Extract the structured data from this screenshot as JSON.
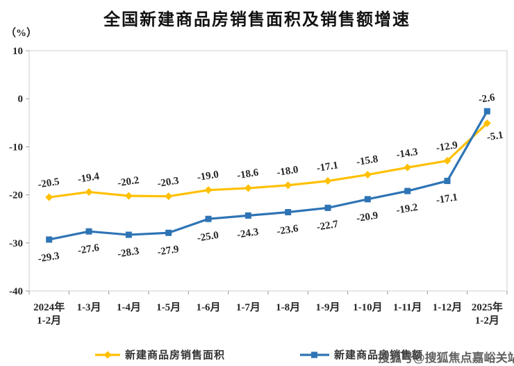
{
  "title": "全国新建商品房销售面积及销售额增速",
  "y_axis_unit": "（%）",
  "watermark": "搜狐号@搜狐焦点嘉峪关站",
  "colors": {
    "series_area": "#FFC000",
    "series_amount": "#2E74B5",
    "text": "#262626",
    "plot_border": "#D6D6D6",
    "tick": "#999999"
  },
  "chart_data": {
    "type": "line",
    "categories": [
      [
        "2024年",
        "1-2月"
      ],
      [
        "1-3月"
      ],
      [
        "1-4月"
      ],
      [
        "1-5月"
      ],
      [
        "1-6月"
      ],
      [
        "1-7月"
      ],
      [
        "1-8月"
      ],
      [
        "1-9月"
      ],
      [
        "1-10月"
      ],
      [
        "1-11月"
      ],
      [
        "1-12月"
      ],
      [
        "2025年",
        "1-2月"
      ]
    ],
    "series": [
      {
        "name": "新建商品房销售面积",
        "color": "#FFC000",
        "marker": "diamond",
        "label_position": "above",
        "values": [
          -20.5,
          -19.4,
          -20.2,
          -20.3,
          -19.0,
          -18.6,
          -18.0,
          -17.1,
          -15.8,
          -14.3,
          -12.9,
          -5.1
        ],
        "label_overrides": {
          "11": {
            "dx": 12,
            "dy": 23
          }
        }
      },
      {
        "name": "新建商品房销售额",
        "color": "#2E74B5",
        "marker": "square",
        "label_position": "below",
        "values": [
          -29.3,
          -27.6,
          -28.3,
          -27.9,
          -25.0,
          -24.3,
          -23.6,
          -22.7,
          -20.9,
          -19.2,
          -17.1,
          -2.6
        ],
        "label_overrides": {
          "11": {
            "dx": 0,
            "dy": -14
          }
        }
      }
    ],
    "ylim": [
      -40,
      10
    ],
    "y_ticks": [
      10,
      0,
      -10,
      -20,
      -30,
      -40
    ],
    "grid": false,
    "legend_position": "bottom",
    "value_decimals": 1
  }
}
